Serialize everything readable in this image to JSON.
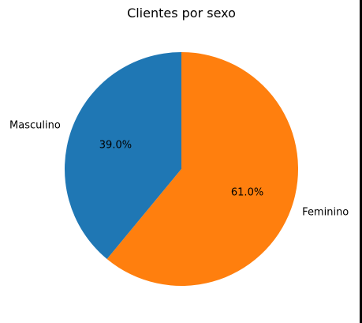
{
  "chart_data": {
    "type": "pie",
    "title": "Clientes por sexo",
    "labels": [
      "Masculino",
      "Feminino"
    ],
    "values": [
      39.0,
      61.0
    ],
    "percent_labels": [
      "39.0%",
      "61.0%"
    ],
    "colors": [
      "#1f77b4",
      "#ff7f0e"
    ],
    "start_angle_deg": 90,
    "direction": "counterclockwise"
  }
}
